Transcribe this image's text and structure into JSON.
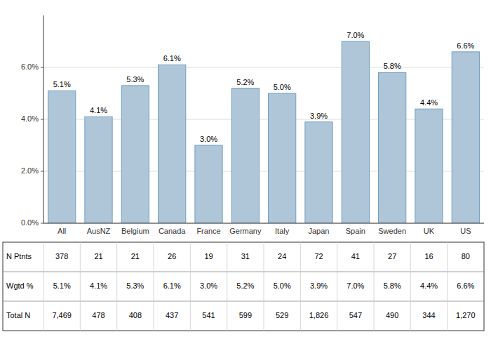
{
  "chart_data": {
    "type": "bar",
    "categories": [
      "All",
      "AusNZ",
      "Belgium",
      "Canada",
      "France",
      "Germany",
      "Italy",
      "Japan",
      "Spain",
      "Sweden",
      "UK",
      "US"
    ],
    "values": [
      5.1,
      4.1,
      5.3,
      6.1,
      3.0,
      5.2,
      5.0,
      3.9,
      7.0,
      5.8,
      4.4,
      6.6
    ],
    "value_labels": [
      "5.1%",
      "4.1%",
      "5.3%",
      "6.1%",
      "3.0%",
      "5.2%",
      "5.0%",
      "3.9%",
      "7.0%",
      "5.8%",
      "4.4%",
      "6.6%"
    ],
    "data_labels": true,
    "color": "#aec6d8",
    "ylim": [
      0,
      8.0
    ],
    "yticks": [
      {
        "value": 0.0,
        "label": "0.0%"
      },
      {
        "value": 2.0,
        "label": "2.0%"
      },
      {
        "value": 4.0,
        "label": "4.0%"
      },
      {
        "value": 6.0,
        "label": "6.0%"
      }
    ],
    "grid": true,
    "table": [
      [
        "N Ptnts",
        "378",
        "21",
        "21",
        "26",
        "19",
        "31",
        "24",
        "72",
        "41",
        "27",
        "16",
        "80"
      ],
      [
        "Wgtd %",
        "5.1%",
        "4.1%",
        "5.3%",
        "6.1%",
        "3.0%",
        "5.2%",
        "5.0%",
        "3.9%",
        "7.0%",
        "5.8%",
        "4.4%",
        "6.6%"
      ],
      [
        "Total N",
        "7,469",
        "478",
        "408",
        "437",
        "541",
        "599",
        "529",
        "1,826",
        "547",
        "490",
        "344",
        "1,270"
      ]
    ]
  }
}
